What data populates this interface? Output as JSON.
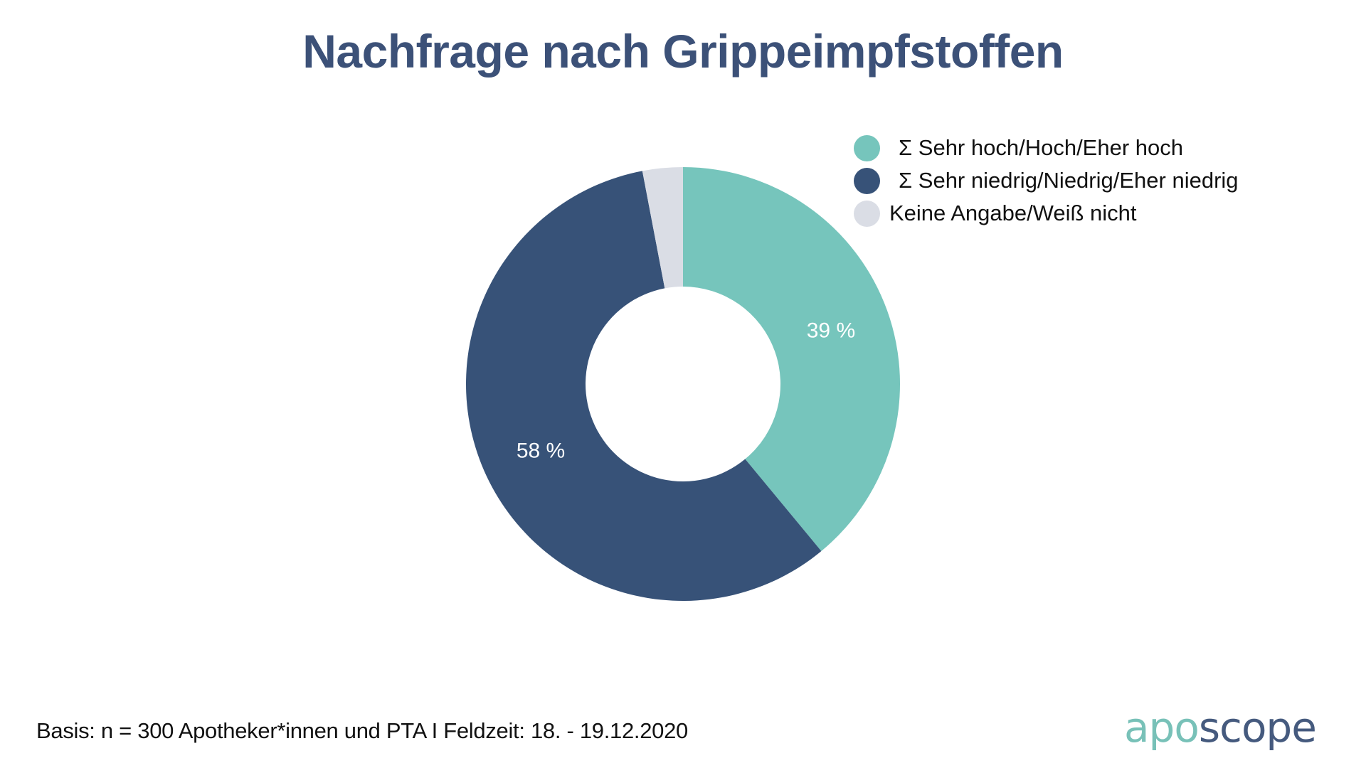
{
  "chart_data": {
    "type": "pie",
    "variant": "donut",
    "title": "Nachfrage nach Grippeimpfstoffen",
    "categories": [
      "Σ Sehr hoch/Hoch/Eher hoch",
      "Σ Sehr niedrig/Niedrig/Eher niedrig",
      "Keine Angabe/Weiß nicht"
    ],
    "values": [
      39,
      58,
      3
    ],
    "unit": "%",
    "data_labels": [
      "39 %",
      "58 %",
      ""
    ],
    "colors": [
      "#76C5BC",
      "#375278",
      "#DADDE5"
    ],
    "start_angle": "top (12 o'clock), clockwise",
    "legend_position": "top-right"
  },
  "legend": {
    "items": [
      {
        "label": "Σ Sehr hoch/Hoch/Eher hoch",
        "color": "#76C5BC"
      },
      {
        "label": "Σ Sehr niedrig/Niedrig/Eher niedrig",
        "color": "#375278"
      },
      {
        "label": "Keine Angabe/Weiß nicht",
        "color": "#DADDE5"
      }
    ]
  },
  "footer": {
    "note": "Basis: n = 300 Apotheker*innen und PTA I Feldzeit: 18. - 19.12.2020"
  },
  "logo": {
    "part1": "apo",
    "part2": "scope",
    "part1_color": "#78C1B8",
    "part2_color": "#455A7E"
  },
  "colors": {
    "title": "#3C5178",
    "text": "#111111",
    "label_text": "#FFFFFF"
  }
}
